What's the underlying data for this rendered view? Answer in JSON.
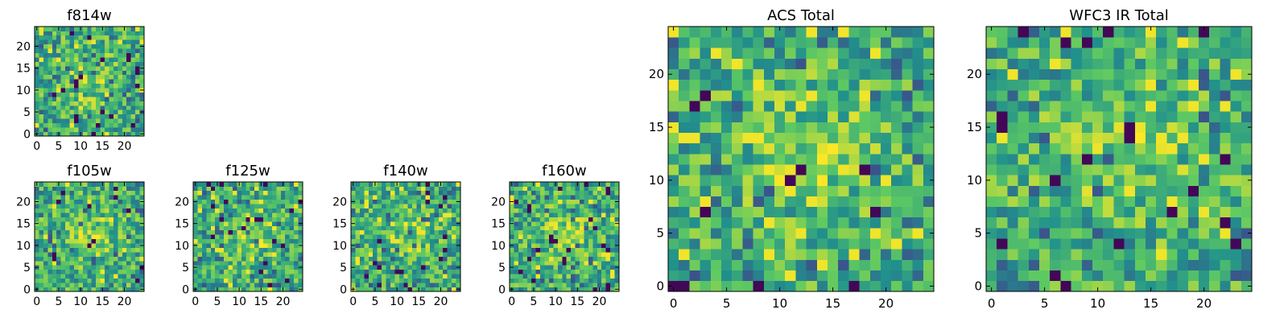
{
  "chart_data": [
    {
      "id": "f814w",
      "type": "heatmap",
      "title": "f814w",
      "grid_size": 25,
      "seed": 814,
      "xticks": [
        "0",
        "5",
        "10",
        "15",
        "20"
      ],
      "yticks": [
        "0",
        "5",
        "10",
        "15",
        "20"
      ]
    },
    {
      "id": "f105w",
      "type": "heatmap",
      "title": "f105w",
      "grid_size": 25,
      "seed": 105,
      "xticks": [
        "0",
        "5",
        "10",
        "15",
        "20"
      ],
      "yticks": [
        "0",
        "5",
        "10",
        "15",
        "20"
      ]
    },
    {
      "id": "f125w",
      "type": "heatmap",
      "title": "f125w",
      "grid_size": 25,
      "seed": 125,
      "xticks": [
        "0",
        "5",
        "10",
        "15",
        "20"
      ],
      "yticks": [
        "0",
        "5",
        "10",
        "15",
        "20"
      ]
    },
    {
      "id": "f140w",
      "type": "heatmap",
      "title": "f140w",
      "grid_size": 25,
      "seed": 140,
      "xticks": [
        "0",
        "5",
        "10",
        "15",
        "20"
      ],
      "yticks": [
        "0",
        "5",
        "10",
        "15",
        "20"
      ]
    },
    {
      "id": "f160w",
      "type": "heatmap",
      "title": "f160w",
      "grid_size": 25,
      "seed": 160,
      "xticks": [
        "0",
        "5",
        "10",
        "15",
        "20"
      ],
      "yticks": [
        "0",
        "5",
        "10",
        "15",
        "20"
      ]
    },
    {
      "id": "acs",
      "type": "heatmap",
      "title": "ACS Total",
      "grid_size": 25,
      "seed": 901,
      "xticks": [
        "0",
        "5",
        "10",
        "15",
        "20"
      ],
      "yticks": [
        "0",
        "5",
        "10",
        "15",
        "20"
      ]
    },
    {
      "id": "wfc3",
      "type": "heatmap",
      "title": "WFC3 IR Total",
      "grid_size": 25,
      "seed": 902,
      "xticks": [
        "0",
        "5",
        "10",
        "15",
        "20"
      ],
      "yticks": [
        "0",
        "5",
        "10",
        "15",
        "20"
      ]
    }
  ],
  "colormap": [
    "#440154",
    "#3b528b",
    "#21918c",
    "#5ec962",
    "#fde725"
  ]
}
